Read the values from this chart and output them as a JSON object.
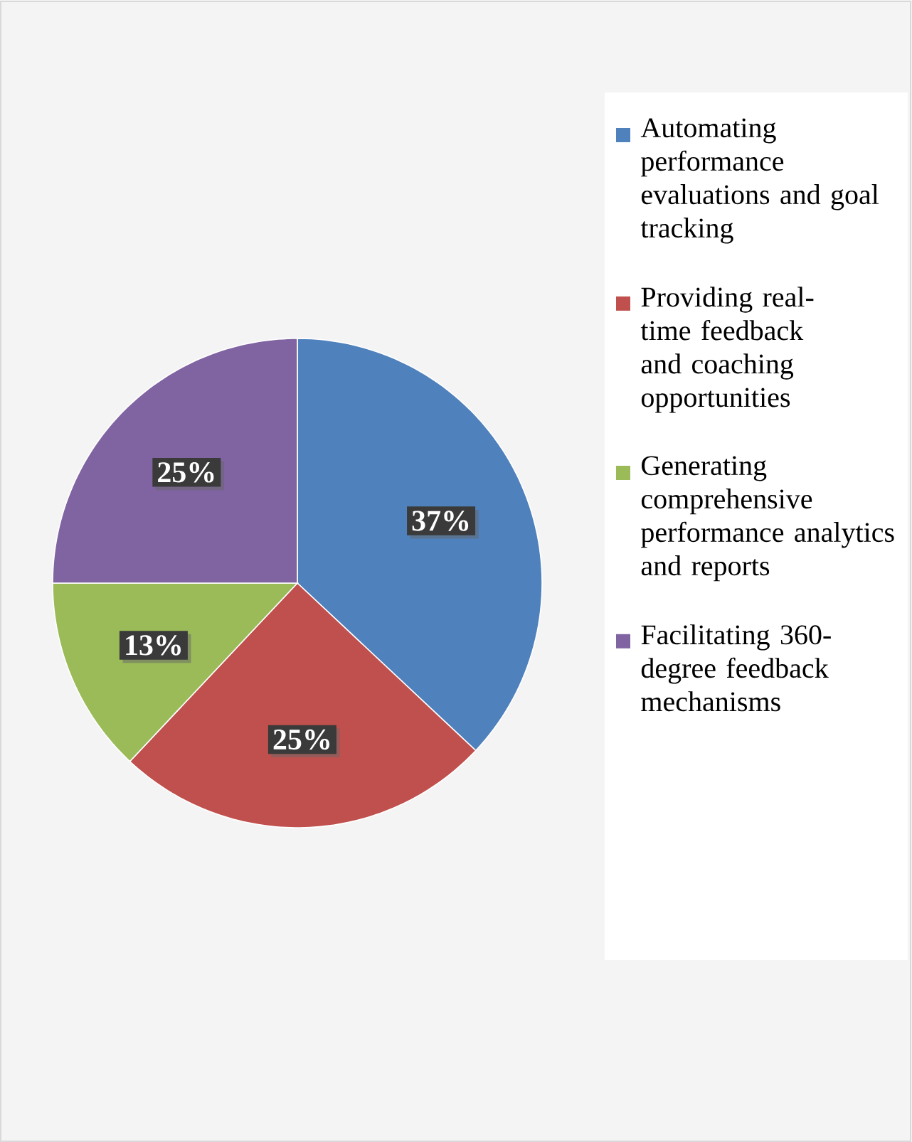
{
  "chart_data": {
    "type": "pie",
    "categories": [
      "Automating performance evaluations and goal tracking",
      "Providing real-time feedback and coaching opportunities",
      "Generating comprehensive performance analytics and reports",
      "Facilitating 360-degree feedback mechanisms"
    ],
    "values": [
      37,
      25,
      13,
      25
    ],
    "value_labels": [
      "37%",
      "25%",
      "13%",
      "25%"
    ],
    "colors": [
      "#4f81bd",
      "#c0504d",
      "#9bbb59",
      "#8064a2"
    ],
    "legend": "right"
  }
}
